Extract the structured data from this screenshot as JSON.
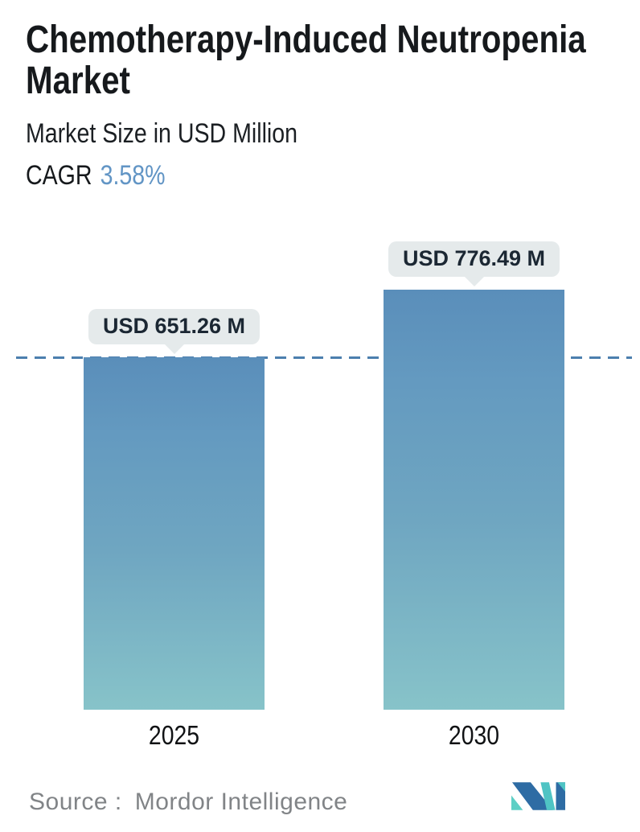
{
  "header": {
    "title": "Chemotherapy-Induced Neutropenia Market",
    "subtitle": "Market Size in USD Million",
    "cagr_label": "CAGR",
    "cagr_value": "3.58%"
  },
  "chart_data": {
    "type": "bar",
    "title": "Chemotherapy-Induced Neutropenia Market",
    "subtitle": "Market Size in USD Million",
    "unit": "USD Million",
    "cagr_percent": 3.58,
    "categories": [
      "2025",
      "2030"
    ],
    "values": [
      651.26,
      776.49
    ],
    "value_labels": [
      "USD 651.26 M",
      "USD 776.49 M"
    ],
    "ylim": [
      0,
      776.49
    ],
    "grid": false,
    "legend": "none",
    "reference_line": {
      "style": "dashed",
      "at_value": 651.26,
      "color": "#4c7fae"
    },
    "bar_gradient_top": "#5a8eba",
    "bar_gradient_bottom": "#87c3c9",
    "callout_background": "#e5eaeb",
    "callout_text_color": "#1b2733"
  },
  "footer": {
    "source_label": "Source :",
    "source_value": "Mordor Intelligence",
    "logo_icon": "mordor-intelligence-logo",
    "logo_navy": "#2e6ca4",
    "logo_teal": "#4fc4c4",
    "logo_teal_light": "#5ecfc5"
  },
  "colors": {
    "background": "#ffffff",
    "title_text": "#16191c",
    "cagr_accent": "#6295c5",
    "source_text": "#818487"
  }
}
